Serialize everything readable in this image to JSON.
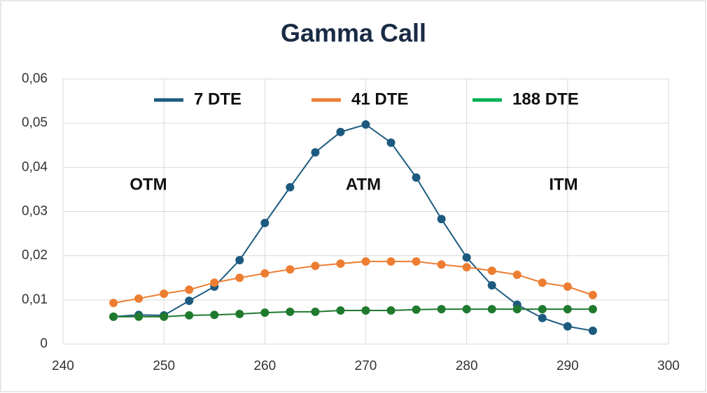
{
  "chart_data": {
    "type": "line",
    "title": "Gamma Call",
    "x": [
      245,
      247.5,
      250,
      252.5,
      255,
      257.5,
      260,
      262.5,
      265,
      267.5,
      270,
      272.5,
      275,
      277.5,
      280,
      282.5,
      285,
      287.5,
      290,
      292.5
    ],
    "series": [
      {
        "name": "7 DTE",
        "color": "#1c5a7f",
        "values": [
          0.0062,
          0.0066,
          0.0065,
          0.0098,
          0.013,
          0.019,
          0.0274,
          0.0355,
          0.0434,
          0.048,
          0.0497,
          0.0456,
          0.0377,
          0.0283,
          0.0196,
          0.0133,
          0.0089,
          0.0059,
          0.004,
          0.003
        ]
      },
      {
        "name": "41 DTE",
        "color": "#ed7d31",
        "values": [
          0.0093,
          0.0103,
          0.0114,
          0.0123,
          0.0139,
          0.015,
          0.016,
          0.0169,
          0.0177,
          0.0182,
          0.0187,
          0.0187,
          0.0187,
          0.018,
          0.0174,
          0.0166,
          0.0157,
          0.0139,
          0.013,
          0.0111
        ]
      },
      {
        "name": "188 DTE",
        "color": "#1f7a2e",
        "values": [
          0.0062,
          0.0062,
          0.0062,
          0.0065,
          0.0066,
          0.0068,
          0.0071,
          0.0073,
          0.0073,
          0.0076,
          0.0076,
          0.0076,
          0.0078,
          0.0079,
          0.0079,
          0.0079,
          0.0079,
          0.0079,
          0.0079,
          0.0079
        ]
      }
    ],
    "annotations": [
      "OTM",
      "ATM",
      "ITM"
    ],
    "xlim": [
      240,
      300
    ],
    "xticks": [
      240,
      250,
      260,
      270,
      280,
      290,
      300
    ],
    "ylim": [
      0,
      0.06
    ],
    "yticks": [
      0,
      {
        "value": 0.01,
        "label": "0,01"
      },
      {
        "value": 0.02,
        "label": "0,02"
      },
      {
        "value": 0.03,
        "label": "0,03"
      },
      {
        "value": 0.04,
        "label": "0,04"
      },
      {
        "value": 0.05,
        "label": "0,05"
      },
      {
        "value": 0.06,
        "label": "0,06"
      }
    ],
    "grid": true,
    "legend": "top"
  }
}
